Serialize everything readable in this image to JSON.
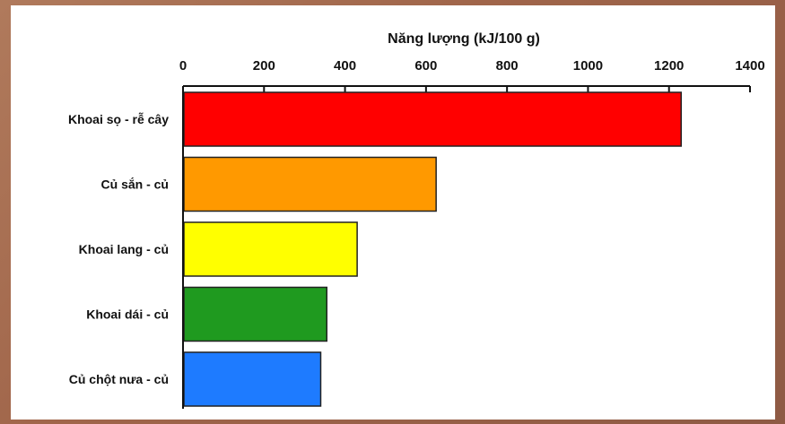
{
  "chart_data": {
    "type": "bar",
    "orientation": "horizontal",
    "xlabel": "Năng lượng (kJ/100 g)",
    "xlabel_position": "top",
    "xlim": [
      0,
      1400
    ],
    "ticks": [
      "0",
      "200",
      "400",
      "600",
      "800",
      "1000",
      "1200",
      "1400"
    ],
    "tick_values": [
      0,
      200,
      400,
      600,
      800,
      1000,
      1200,
      1400
    ],
    "categories": [
      "Khoai sọ - rễ cây",
      "Củ sắn - củ",
      "Khoai lang - củ",
      "Khoai dái - củ",
      "Củ chột nưa - củ"
    ],
    "values": [
      1230,
      625,
      430,
      355,
      340
    ],
    "colors": [
      "#ff0000",
      "#ff9900",
      "#ffff00",
      "#1f9a1f",
      "#1e7bff"
    ],
    "grid": false,
    "legend": "none"
  }
}
